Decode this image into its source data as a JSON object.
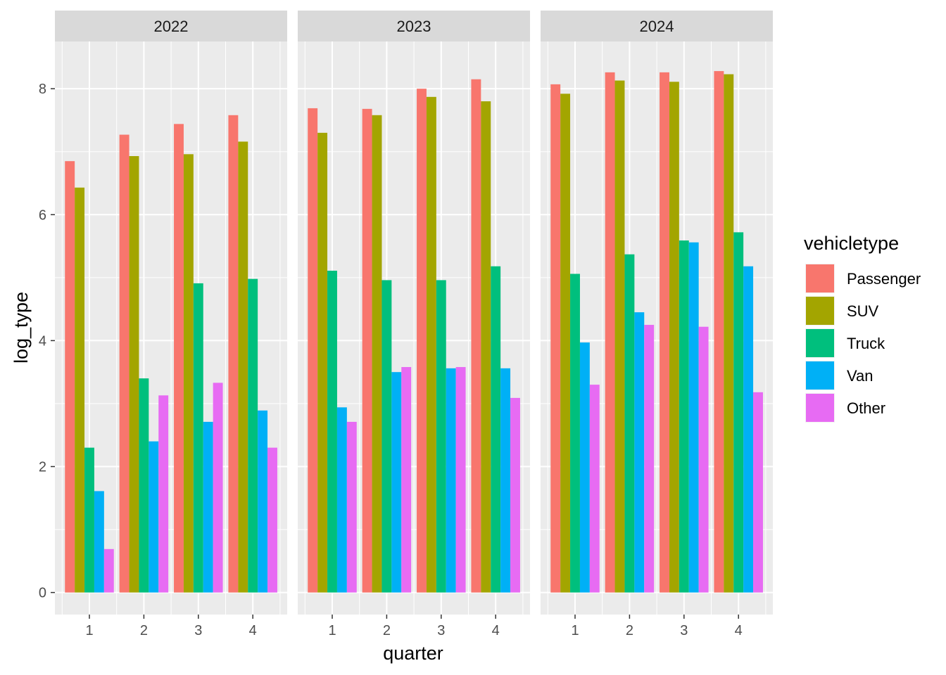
{
  "chart_data": {
    "type": "bar",
    "layout": "faceted-dodged-bar",
    "xlabel": "quarter",
    "ylabel": "log_type",
    "ylim": [
      -0.35,
      8.75
    ],
    "y_ticks": [
      0,
      2,
      4,
      6,
      8
    ],
    "categories": [
      "1",
      "2",
      "3",
      "4"
    ],
    "grid": true,
    "legend": {
      "title": "vehicletype",
      "position": "right",
      "items": [
        "Passenger",
        "SUV",
        "Truck",
        "Van",
        "Other"
      ]
    },
    "colors": {
      "Passenger": "#F8766D",
      "SUV": "#A3A500",
      "Truck": "#00BF7D",
      "Van": "#00B0F6",
      "Other": "#E76BF3"
    },
    "facets": [
      {
        "title": "2022",
        "series": [
          {
            "name": "Passenger",
            "values": [
              6.85,
              7.27,
              7.44,
              7.58
            ]
          },
          {
            "name": "SUV",
            "values": [
              6.43,
              6.93,
              6.96,
              7.16
            ]
          },
          {
            "name": "Truck",
            "values": [
              2.3,
              3.4,
              4.91,
              4.98
            ]
          },
          {
            "name": "Van",
            "values": [
              1.61,
              2.4,
              2.71,
              2.89
            ]
          },
          {
            "name": "Other",
            "values": [
              0.69,
              3.13,
              3.33,
              2.3
            ]
          }
        ]
      },
      {
        "title": "2023",
        "series": [
          {
            "name": "Passenger",
            "values": [
              7.69,
              7.68,
              8.0,
              8.15
            ]
          },
          {
            "name": "SUV",
            "values": [
              7.3,
              7.58,
              7.87,
              7.8
            ]
          },
          {
            "name": "Truck",
            "values": [
              5.11,
              4.96,
              4.96,
              5.18
            ]
          },
          {
            "name": "Van",
            "values": [
              2.94,
              3.5,
              3.56,
              3.56
            ]
          },
          {
            "name": "Other",
            "values": [
              2.71,
              3.58,
              3.58,
              3.09
            ]
          }
        ]
      },
      {
        "title": "2024",
        "series": [
          {
            "name": "Passenger",
            "values": [
              8.07,
              8.26,
              8.26,
              8.28
            ]
          },
          {
            "name": "SUV",
            "values": [
              7.92,
              8.13,
              8.11,
              8.23
            ]
          },
          {
            "name": "Truck",
            "values": [
              5.06,
              5.37,
              5.59,
              5.72
            ]
          },
          {
            "name": "Van",
            "values": [
              3.97,
              4.45,
              5.56,
              5.18
            ]
          },
          {
            "name": "Other",
            "values": [
              3.3,
              4.25,
              4.22,
              3.18
            ]
          }
        ]
      }
    ]
  }
}
